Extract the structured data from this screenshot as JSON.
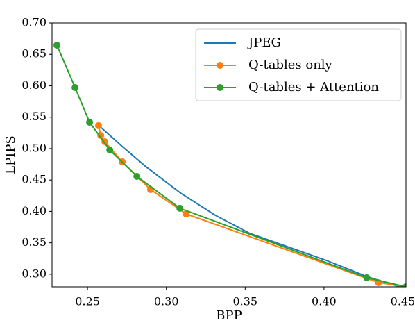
{
  "chart_data": {
    "type": "line",
    "xlabel": "BPP",
    "ylabel": "LPIPS",
    "xlim": [
      0.2275,
      0.452
    ],
    "ylim": [
      0.28,
      0.7
    ],
    "xticks": [
      0.25,
      {
        "value": 0.3,
        "label": "0.30"
      },
      0.35,
      {
        "value": 0.4,
        "label": "0.40"
      },
      0.45
    ],
    "yticks": [
      {
        "value": 0.3,
        "label": "0.30"
      },
      0.35,
      {
        "value": 0.4,
        "label": "0.40"
      },
      0.45,
      {
        "value": 0.5,
        "label": "0.50"
      },
      0.55,
      {
        "value": 0.6,
        "label": "0.60"
      },
      0.65,
      {
        "value": 0.7,
        "label": "0.70"
      }
    ],
    "legend": "upper right",
    "series": [
      {
        "name": "JPEG",
        "color": "#1f77b4",
        "marker": false,
        "x": [
          0.2584,
          0.2716,
          0.287,
          0.309,
          0.331,
          0.353,
          0.4015,
          0.428,
          0.448
        ],
        "values": [
          0.534,
          0.5044,
          0.4713,
          0.4293,
          0.394,
          0.365,
          0.322,
          0.2956,
          0.28
        ]
      },
      {
        "name": "Q-tables only",
        "color": "#ff7f0e",
        "marker": true,
        "x": [
          0.257,
          0.2584,
          0.261,
          0.272,
          0.29,
          0.3126,
          0.4346,
          0.452
        ],
        "values": [
          0.5365,
          0.521,
          0.511,
          0.479,
          0.4348,
          0.396,
          0.2867,
          0.28
        ]
      },
      {
        "name": "Q-tables + Attention",
        "color": "#2ca02c",
        "marker": true,
        "x": [
          0.2306,
          0.2421,
          0.2513,
          0.2641,
          0.2813,
          0.3086,
          0.4271,
          0.452
        ],
        "values": [
          0.6646,
          0.5972,
          0.542,
          0.4978,
          0.4558,
          0.405,
          0.2945,
          0.28
        ]
      }
    ]
  }
}
